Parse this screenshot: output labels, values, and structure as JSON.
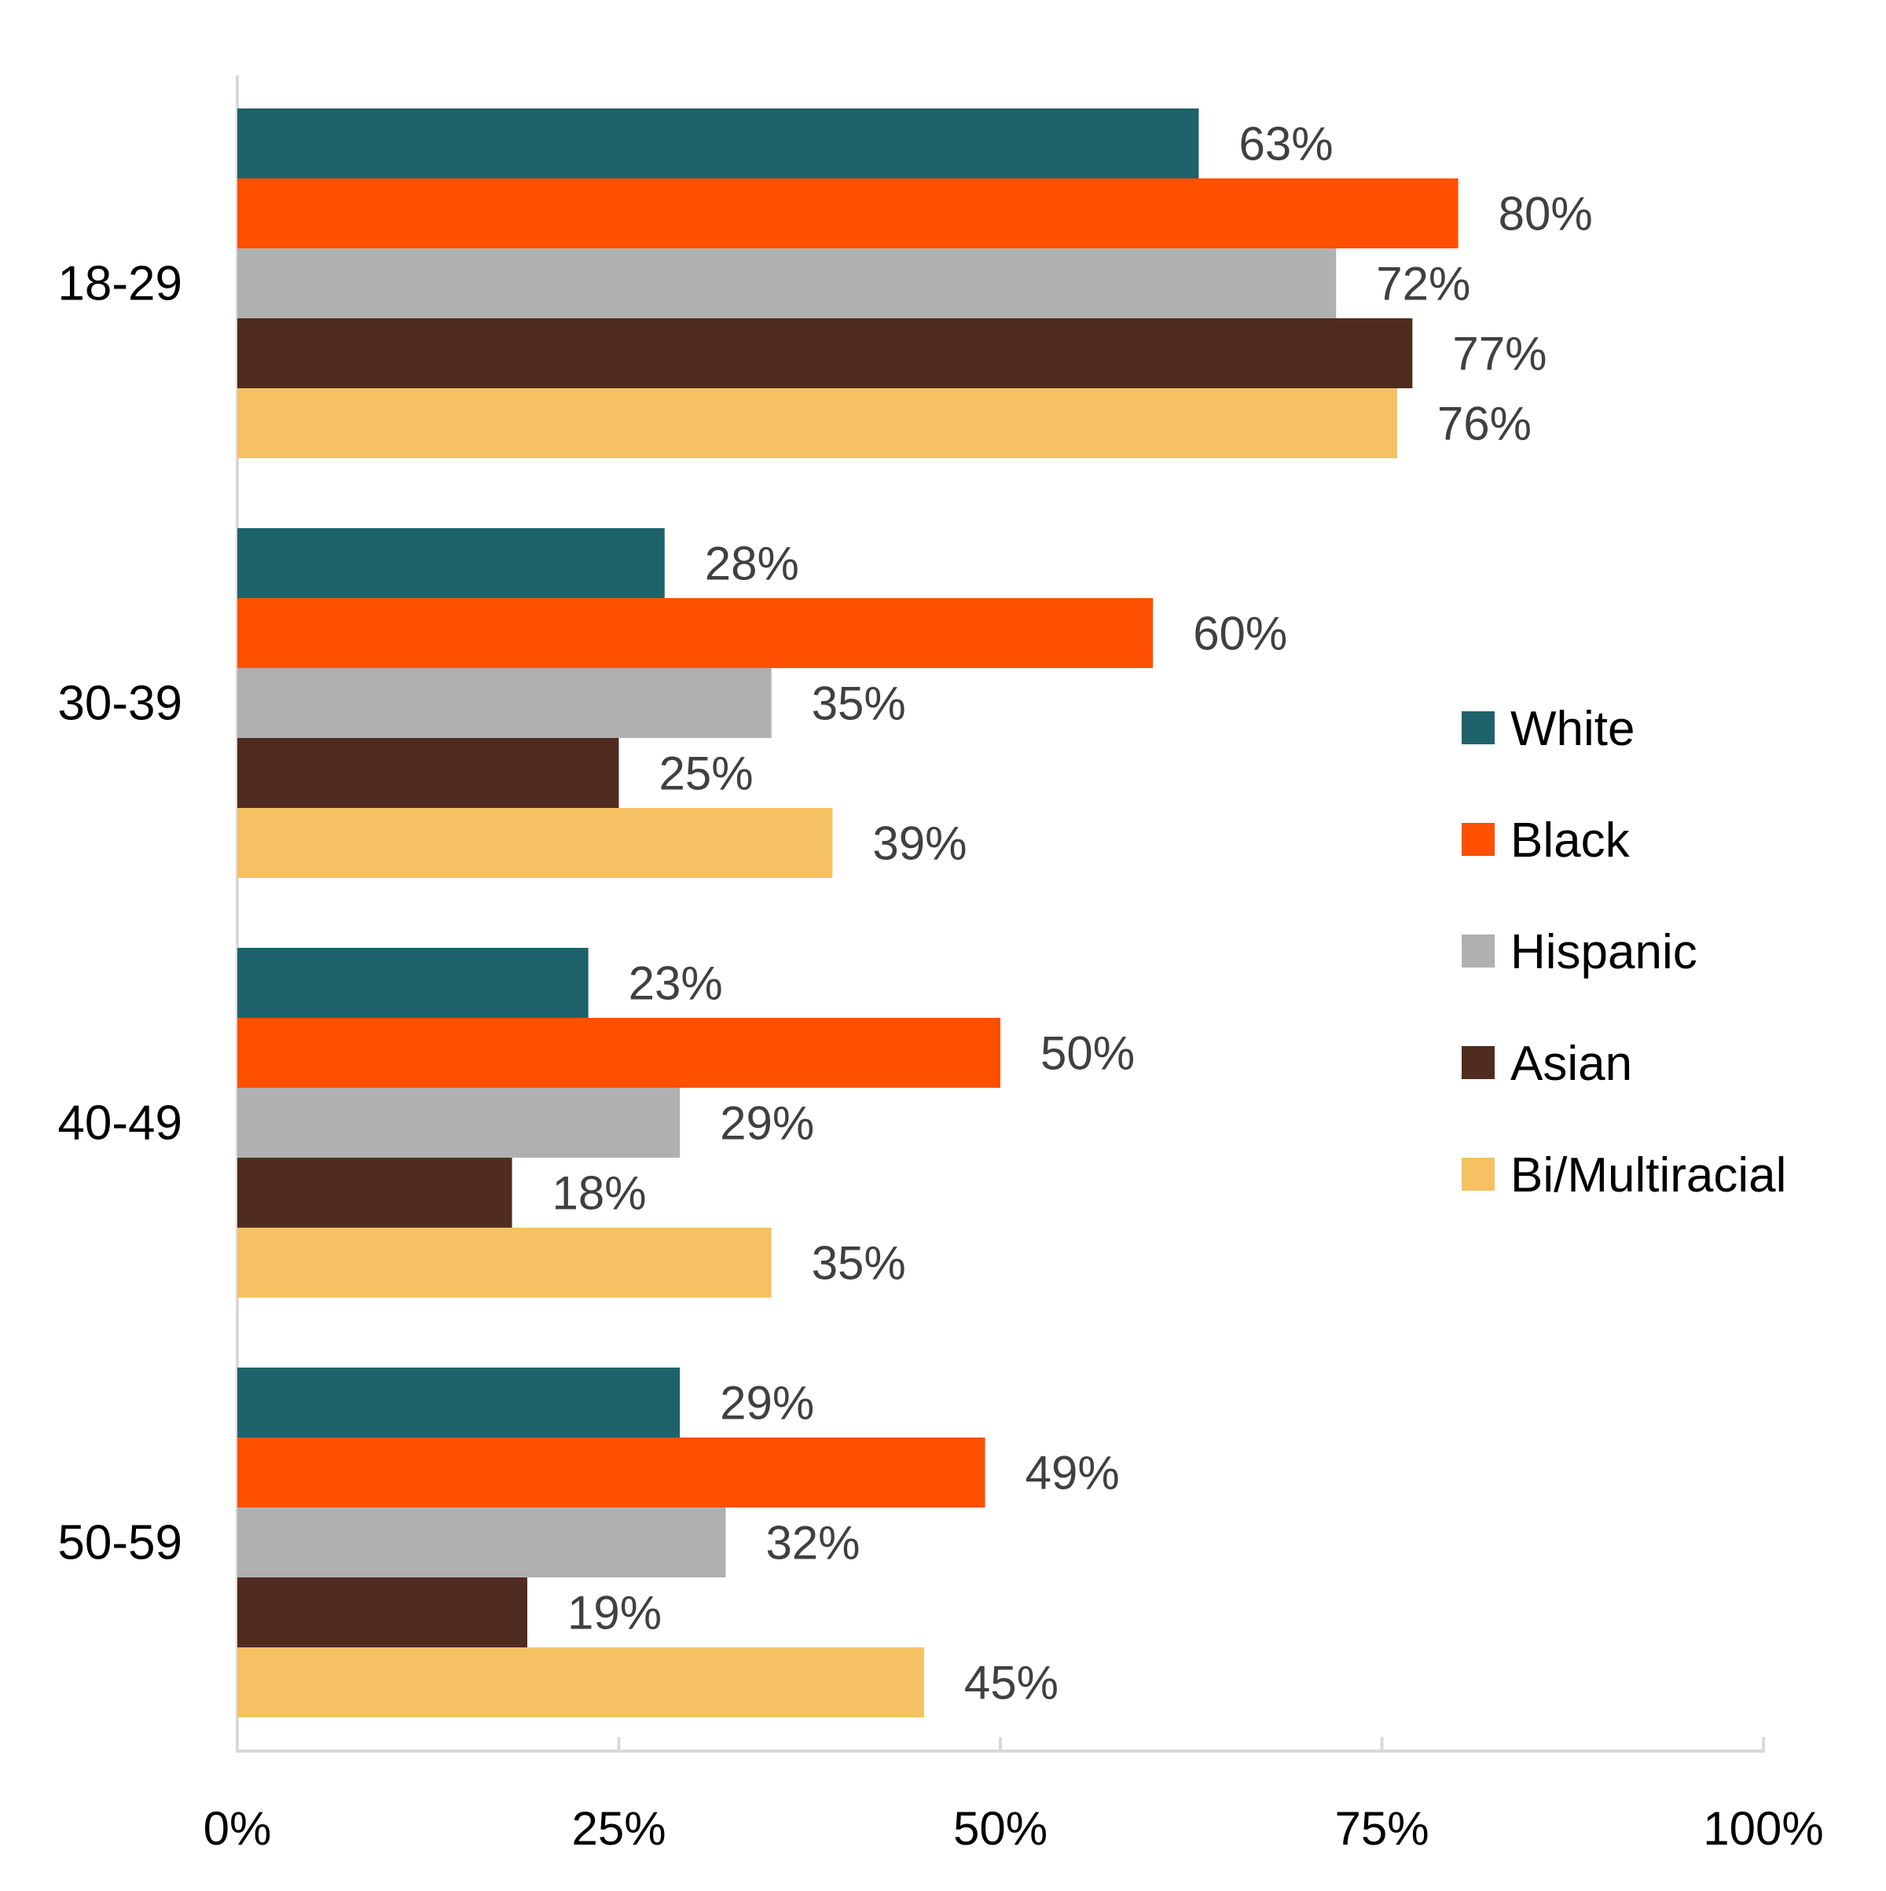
{
  "chart_data": {
    "type": "bar",
    "orientation": "horizontal",
    "title": "",
    "xlabel": "",
    "ylabel": "",
    "categories": [
      "18-29",
      "30-39",
      "40-49",
      "50-59"
    ],
    "series": [
      {
        "name": "White",
        "color": "#1e636b",
        "values": [
          63,
          28,
          23,
          29
        ]
      },
      {
        "name": "Black",
        "color": "#ff5000",
        "values": [
          80,
          60,
          50,
          49
        ]
      },
      {
        "name": "Hispanic",
        "color": "#b0b0b0",
        "values": [
          72,
          35,
          29,
          32
        ]
      },
      {
        "name": "Asian",
        "color": "#4f2c1f",
        "values": [
          77,
          25,
          18,
          19
        ]
      },
      {
        "name": "Bi/Multiracial",
        "color": "#f5c163",
        "values": [
          76,
          39,
          35,
          45
        ]
      }
    ],
    "xlim": [
      0,
      100
    ],
    "xticks": [
      "0%",
      "25%",
      "50%",
      "75%",
      "100%"
    ],
    "value_suffix": "%",
    "legend_placement": "right",
    "grid": false
  }
}
